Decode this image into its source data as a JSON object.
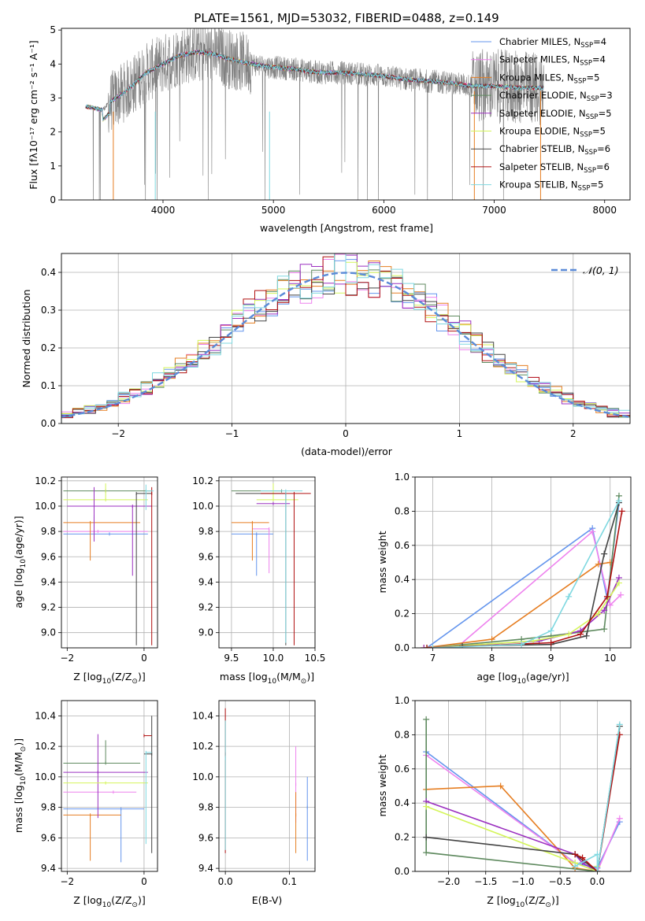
{
  "figure": {
    "title": "PLATE=1561, MJD=53032, FIBERID=0488, z=0.149"
  },
  "chart_data": [
    {
      "id": "spectrum",
      "type": "line",
      "xlabel": "wavelength [Angstrom, rest frame]",
      "ylabel": "Flux [fλ10⁻¹⁷ erg cm⁻² s⁻¹ A⁻¹]",
      "xlim": [
        3080,
        8230
      ],
      "ylim": [
        0,
        5.05
      ],
      "xticks": [
        4000,
        5000,
        6000,
        7000,
        8000
      ],
      "yticks": [
        0,
        1,
        2,
        3,
        4,
        5
      ],
      "legend": "top-right",
      "series": [
        {
          "name": "Chabrier MILES, N_SSP=4",
          "label_main": "Chabrier MILES, N",
          "label_sub": "SSP",
          "label_end": "=4",
          "color": "#6495ED"
        },
        {
          "name": "Salpeter MILES, N_SSP=4",
          "label_main": "Salpeter MILES, N",
          "label_sub": "SSP",
          "label_end": "=4",
          "color": "#EE82EE"
        },
        {
          "name": "Kroupa MILES, N_SSP=5",
          "label_main": "Kroupa MILES, N",
          "label_sub": "SSP",
          "label_end": "=5",
          "color": "#E67E22"
        },
        {
          "name": "Chabrier ELODIE, N_SSP=3",
          "label_main": "Chabrier ELODIE, N",
          "label_sub": "SSP",
          "label_end": "=3",
          "color": "#5F8A5F"
        },
        {
          "name": "Salpeter ELODIE, N_SSP=5",
          "label_main": "Salpeter ELODIE, N",
          "label_sub": "SSP",
          "label_end": "=5",
          "color": "#9B30C0"
        },
        {
          "name": "Kroupa ELODIE, N_SSP=5",
          "label_main": "Kroupa ELODIE, N",
          "label_sub": "SSP",
          "label_end": "=5",
          "color": "#D4F55A"
        },
        {
          "name": "Chabrier STELIB, N_SSP=6",
          "label_main": "Chabrier STELIB, N",
          "label_sub": "SSP",
          "label_end": "=6",
          "color": "#444444"
        },
        {
          "name": "Salpeter STELIB, N_SSP=6",
          "label_main": "Salpeter STELIB, N",
          "label_sub": "SSP",
          "label_end": "=6",
          "color": "#B01010"
        },
        {
          "name": "Kroupa STELIB, N_SSP=5",
          "label_main": "Kroupa STELIB, N",
          "label_sub": "SSP",
          "label_end": "=5",
          "color": "#7FD8E0"
        }
      ],
      "data_color": "#808080",
      "continuum": {
        "x": [
          3300,
          3450,
          3550,
          3700,
          3850,
          4000,
          4150,
          4300,
          4450,
          4600,
          4800,
          5000,
          5200,
          5400,
          5600,
          5800,
          6000,
          6200,
          6400,
          6600,
          6800,
          7000,
          7200,
          7400
        ],
        "y": [
          2.75,
          2.65,
          2.95,
          3.3,
          3.75,
          4.0,
          4.25,
          4.35,
          4.3,
          4.15,
          4.0,
          3.9,
          3.85,
          3.75,
          3.75,
          3.7,
          3.65,
          3.55,
          3.5,
          3.45,
          3.35,
          3.35,
          3.3,
          3.3
        ]
      }
    },
    {
      "id": "residuals",
      "type": "histogram",
      "xlabel": "(data-model)/error",
      "ylabel": "Normed distribution",
      "xlim": [
        -2.5,
        2.5
      ],
      "ylim": [
        0,
        0.45
      ],
      "xticks": [
        -2,
        -1,
        0,
        1,
        2
      ],
      "yticks": [
        0.0,
        0.1,
        0.2,
        0.3,
        0.4
      ],
      "grid": true,
      "legend": "top-right",
      "reference": {
        "name": "N(0,1)",
        "label": "𝒩(0, 1)",
        "mean": 0,
        "sigma": 1,
        "color": "#5B8BD8"
      },
      "bin_width": 0.1,
      "bin_start": -2.5
    },
    {
      "id": "age-vs-Z",
      "type": "errorbar",
      "xlabel_main": "Z [log",
      "xlabel_sub": "10",
      "xlabel_end": "(Z/Z",
      "xlabel_tail": ")]",
      "ylabel_main": "age  [log",
      "ylabel_sub": "10",
      "ylabel_end": "(age/yr)]",
      "xlim": [
        -2.15,
        0.35
      ],
      "ylim": [
        8.88,
        10.23
      ],
      "xticks": [
        -2,
        0
      ],
      "yticks": [
        9.0,
        9.2,
        9.4,
        9.6,
        9.8,
        10.0,
        10.2
      ],
      "grid": true,
      "points": [
        {
          "series": 0,
          "x": -0.9,
          "xerr": [
            1.2,
            1.0
          ],
          "y": 9.78,
          "yerr": [
            0.0,
            0.0
          ]
        },
        {
          "series": 1,
          "x": -1.2,
          "xerr": [
            0.9,
            1.3
          ],
          "y": 9.8,
          "yerr": [
            0.0,
            0.0
          ]
        },
        {
          "series": 2,
          "x": -1.4,
          "xerr": [
            0.7,
            1.3
          ],
          "y": 9.87,
          "yerr": [
            0.3,
            0.0
          ]
        },
        {
          "series": 3,
          "x": -1.0,
          "xerr": [
            1.1,
            1.2
          ],
          "y": 10.12,
          "yerr": [
            0.0,
            0.0
          ]
        },
        {
          "series": 4,
          "x": -0.3,
          "xerr": [
            1.7,
            0.5
          ],
          "y": 10.0,
          "yerr": [
            0.55,
            0.0
          ]
        },
        {
          "series": 5,
          "x": -1.0,
          "xerr": [
            1.1,
            1.1
          ],
          "y": 10.05,
          "yerr": [
            0.0,
            0.13
          ]
        },
        {
          "series": 6,
          "x": -0.2,
          "xerr": [
            0.0,
            0.4
          ],
          "y": 10.1,
          "yerr": [
            1.2,
            0.0
          ]
        },
        {
          "series": 7,
          "x": 0.2,
          "xerr": [
            0.0,
            0.0
          ],
          "y": 10.1,
          "yerr": [
            1.2,
            0.05
          ]
        },
        {
          "series": 8,
          "x": 0.05,
          "xerr": [
            0.0,
            0.2
          ],
          "y": 10.12,
          "yerr": [
            0.15,
            0.05
          ]
        },
        {
          "series": 0,
          "x": -1.3,
          "xerr": [
            0.0,
            0.0
          ],
          "y": 9.8,
          "yerr": [
            0.0,
            0.13
          ]
        },
        {
          "series": 4,
          "x": -1.3,
          "xerr": [
            0.0,
            0.0
          ],
          "y": 9.9,
          "yerr": [
            0.18,
            0.25
          ]
        }
      ]
    },
    {
      "id": "age-vs-mass",
      "type": "errorbar",
      "xlabel_main": "mass [log",
      "xlabel_sub": "10",
      "xlabel_end": "(M/M",
      "xlabel_tail": ")]",
      "xlim": [
        9.35,
        10.5
      ],
      "ylim": [
        8.88,
        10.23
      ],
      "xticks": [
        9.5,
        10.0,
        10.5
      ],
      "yticks": [
        9.0,
        9.2,
        9.4,
        9.6,
        9.8,
        10.0,
        10.2
      ],
      "grid": true,
      "points": [
        {
          "series": 0,
          "x": 9.8,
          "xerr": [
            0.3,
            0.2
          ],
          "y": 9.78,
          "yerr": [
            0.33,
            0.0
          ]
        },
        {
          "series": 1,
          "x": 9.95,
          "xerr": [
            0.2,
            0.0
          ],
          "y": 9.82,
          "yerr": [
            0.35,
            0.0
          ]
        },
        {
          "series": 2,
          "x": 9.75,
          "xerr": [
            0.25,
            0.2
          ],
          "y": 9.87,
          "yerr": [
            0.3,
            0.0
          ]
        },
        {
          "series": 3,
          "x": 10.1,
          "xerr": [
            0.6,
            0.0
          ],
          "y": 10.12,
          "yerr": [
            0.0,
            0.0
          ]
        },
        {
          "series": 4,
          "x": 10.0,
          "xerr": [
            0.2,
            0.2
          ],
          "y": 10.02,
          "yerr": [
            0.0,
            0.0
          ]
        },
        {
          "series": 5,
          "x": 10.0,
          "xerr": [
            0.2,
            0.3
          ],
          "y": 10.05,
          "yerr": [
            0.0,
            0.13
          ]
        },
        {
          "series": 6,
          "x": 10.15,
          "xerr": [
            0.6,
            0.0
          ],
          "y": 10.1,
          "yerr": [
            1.2,
            0.0
          ]
        },
        {
          "series": 7,
          "x": 10.25,
          "xerr": [
            0.4,
            0.2
          ],
          "y": 10.1,
          "yerr": [
            1.2,
            0.0
          ]
        },
        {
          "series": 8,
          "x": 10.15,
          "xerr": [
            0.3,
            0.2
          ],
          "y": 10.12,
          "yerr": [
            1.2,
            0.0
          ]
        }
      ]
    },
    {
      "id": "massweight-vs-age",
      "type": "line",
      "xlabel_main": "age  [log",
      "xlabel_sub": "10",
      "xlabel_end": "(age/yr)]",
      "ylabel": "mass weight",
      "xlim": [
        6.7,
        10.35
      ],
      "ylim": [
        0,
        1.0
      ],
      "xticks": [
        7,
        8,
        9,
        10
      ],
      "yticks": [
        0.0,
        0.2,
        0.4,
        0.6,
        0.8,
        1.0
      ],
      "grid": true,
      "series_points": [
        {
          "series": 0,
          "x": [
            6.9,
            9.7,
            9.95,
            10.15
          ],
          "y": [
            0.0,
            0.7,
            0.29,
            0.85
          ]
        },
        {
          "series": 1,
          "x": [
            7.4,
            9.7,
            10.0,
            10.18
          ],
          "y": [
            0.0,
            0.68,
            0.25,
            0.31
          ]
        },
        {
          "series": 2,
          "x": [
            6.85,
            8.0,
            9.8,
            10.0
          ],
          "y": [
            0.0,
            0.05,
            0.49,
            0.5
          ]
        },
        {
          "series": 3,
          "x": [
            6.9,
            8.5,
            9.0,
            9.9,
            10.15
          ],
          "y": [
            0.0,
            0.05,
            0.07,
            0.11,
            0.89
          ]
        },
        {
          "series": 4,
          "x": [
            6.85,
            8.8,
            9.5,
            9.9,
            10.15
          ],
          "y": [
            0.0,
            0.04,
            0.1,
            0.22,
            0.41
          ]
        },
        {
          "series": 5,
          "x": [
            6.9,
            8.7,
            9.3,
            9.8,
            10.15
          ],
          "y": [
            0.0,
            0.04,
            0.08,
            0.2,
            0.38
          ]
        },
        {
          "series": 6,
          "x": [
            7.5,
            9.0,
            9.6,
            9.9,
            10.15
          ],
          "y": [
            0.01,
            0.02,
            0.07,
            0.55,
            0.85
          ]
        },
        {
          "series": 7,
          "x": [
            6.9,
            9.0,
            9.5,
            9.95,
            10.2
          ],
          "y": [
            0.0,
            0.03,
            0.08,
            0.3,
            0.8
          ]
        },
        {
          "series": 8,
          "x": [
            7.0,
            8.5,
            9.0,
            9.3,
            10.15
          ],
          "y": [
            0.0,
            0.02,
            0.1,
            0.3,
            0.86
          ]
        }
      ]
    },
    {
      "id": "mass-vs-Z",
      "type": "errorbar",
      "xlabel_main": "Z [log",
      "xlabel_sub": "10",
      "xlabel_end": "(Z/Z",
      "xlabel_tail": ")]",
      "ylabel_main": "mass [log",
      "ylabel_sub": "10",
      "ylabel_end": "(M/M",
      "ylabel_tail": ")]",
      "xlim": [
        -2.15,
        0.35
      ],
      "ylim": [
        9.38,
        10.5
      ],
      "xticks": [
        -2,
        0
      ],
      "yticks": [
        9.4,
        9.6,
        9.8,
        10.0,
        10.2,
        10.4
      ],
      "grid": true,
      "points": [
        {
          "series": 0,
          "x": -0.6,
          "xerr": [
            1.5,
            0.6
          ],
          "y": 9.79,
          "yerr": [
            0.35,
            0.0
          ]
        },
        {
          "series": 1,
          "x": -0.8,
          "xerr": [
            1.3,
            0.6
          ],
          "y": 9.9,
          "yerr": [
            0.0,
            0.0
          ]
        },
        {
          "series": 2,
          "x": -1.4,
          "xerr": [
            0.7,
            0.8
          ],
          "y": 9.75,
          "yerr": [
            0.3,
            0.0
          ]
        },
        {
          "series": 3,
          "x": -1.0,
          "xerr": [
            1.1,
            0.9
          ],
          "y": 10.09,
          "yerr": [
            0.0,
            0.15
          ]
        },
        {
          "series": 4,
          "x": -1.2,
          "xerr": [
            0.9,
            1.3
          ],
          "y": 10.03,
          "yerr": [
            0.3,
            0.25
          ]
        },
        {
          "series": 5,
          "x": -1.0,
          "xerr": [
            1.1,
            1.1
          ],
          "y": 9.96,
          "yerr": [
            0.0,
            0.0
          ]
        },
        {
          "series": 6,
          "x": 0.2,
          "xerr": [
            0.2,
            0.0
          ],
          "y": 10.15,
          "yerr": [
            0.65,
            0.25
          ]
        },
        {
          "series": 7,
          "x": 0.0,
          "xerr": [
            0.0,
            0.2
          ],
          "y": 10.27,
          "yerr": [
            0.0,
            0.0
          ]
        },
        {
          "series": 8,
          "x": 0.05,
          "xerr": [
            0.0,
            0.15
          ],
          "y": 10.16,
          "yerr": [
            0.6,
            0.0
          ]
        }
      ]
    },
    {
      "id": "mass-vs-ebv",
      "type": "errorbar",
      "xlabel": "E(B-V)",
      "xlim": [
        -0.01,
        0.14
      ],
      "ylim": [
        9.38,
        10.5
      ],
      "xticks": [
        0.0,
        0.1
      ],
      "yticks": [
        9.4,
        9.6,
        9.8,
        10.0,
        10.2,
        10.4
      ],
      "grid": true,
      "points": [
        {
          "series": 7,
          "x": 0.0,
          "xerr": [
            0.0,
            0.0
          ],
          "y": 10.15,
          "yerr": [
            0.65,
            0.3
          ]
        },
        {
          "series": 8,
          "x": 0.0,
          "xerr": [
            0.0,
            0.0
          ],
          "y": 10.12,
          "yerr": [
            0.6,
            0.25
          ]
        },
        {
          "series": 1,
          "x": 0.11,
          "xerr": [
            0.0,
            0.0
          ],
          "y": 9.95,
          "yerr": [
            0.25,
            0.25
          ]
        },
        {
          "series": 2,
          "x": 0.11,
          "xerr": [
            0.0,
            0.0
          ],
          "y": 9.75,
          "yerr": [
            0.25,
            0.15
          ]
        },
        {
          "series": 0,
          "x": 0.128,
          "xerr": [
            0.0,
            0.0
          ],
          "y": 9.8,
          "yerr": [
            0.35,
            0.2
          ]
        }
      ]
    },
    {
      "id": "massweight-vs-Z",
      "type": "line",
      "xlabel_main": "Z [log",
      "xlabel_sub": "10",
      "xlabel_end": "(Z/Z",
      "xlabel_tail": ")]",
      "ylabel": "mass weight",
      "xlim": [
        -2.45,
        0.45
      ],
      "ylim": [
        0,
        1.0
      ],
      "xticks": [
        -2.0,
        -1.5,
        -1.0,
        -0.5,
        0.0
      ],
      "yticks": [
        0.0,
        0.2,
        0.4,
        0.6,
        0.8,
        1.0
      ],
      "grid": true,
      "series_points": [
        {
          "series": 0,
          "x": [
            -2.3,
            -0.3,
            0.0,
            0.3
          ],
          "y": [
            0.7,
            0.05,
            0.02,
            0.29
          ]
        },
        {
          "series": 1,
          "x": [
            -2.3,
            -0.3,
            0.0,
            0.3
          ],
          "y": [
            0.68,
            0.05,
            0.0,
            0.31
          ]
        },
        {
          "series": 2,
          "x": [
            -2.3,
            -1.3,
            -0.3,
            0.0
          ],
          "y": [
            0.48,
            0.5,
            0.02,
            0.0
          ]
        },
        {
          "series": 3,
          "x": [
            -2.3,
            -2.3,
            0.0,
            0.3
          ],
          "y": [
            0.89,
            0.11,
            0.0,
            0.85
          ]
        },
        {
          "series": 4,
          "x": [
            -2.3,
            -0.3,
            -0.2,
            0.0
          ],
          "y": [
            0.41,
            0.1,
            0.05,
            0.0
          ]
        },
        {
          "series": 5,
          "x": [
            -2.3,
            -0.3,
            0.0,
            0.0
          ],
          "y": [
            0.38,
            0.05,
            0.0,
            0.03
          ]
        },
        {
          "series": 6,
          "x": [
            -2.3,
            -0.3,
            0.0,
            0.3
          ],
          "y": [
            0.2,
            0.1,
            0.0,
            0.85
          ]
        },
        {
          "series": 7,
          "x": [
            -0.3,
            -0.2,
            0.0,
            0.3
          ],
          "y": [
            0.1,
            0.08,
            0.0,
            0.8
          ]
        },
        {
          "series": 8,
          "x": [
            -0.3,
            0.0,
            0.0,
            0.3
          ],
          "y": [
            0.03,
            0.1,
            0.0,
            0.86
          ]
        }
      ]
    }
  ]
}
